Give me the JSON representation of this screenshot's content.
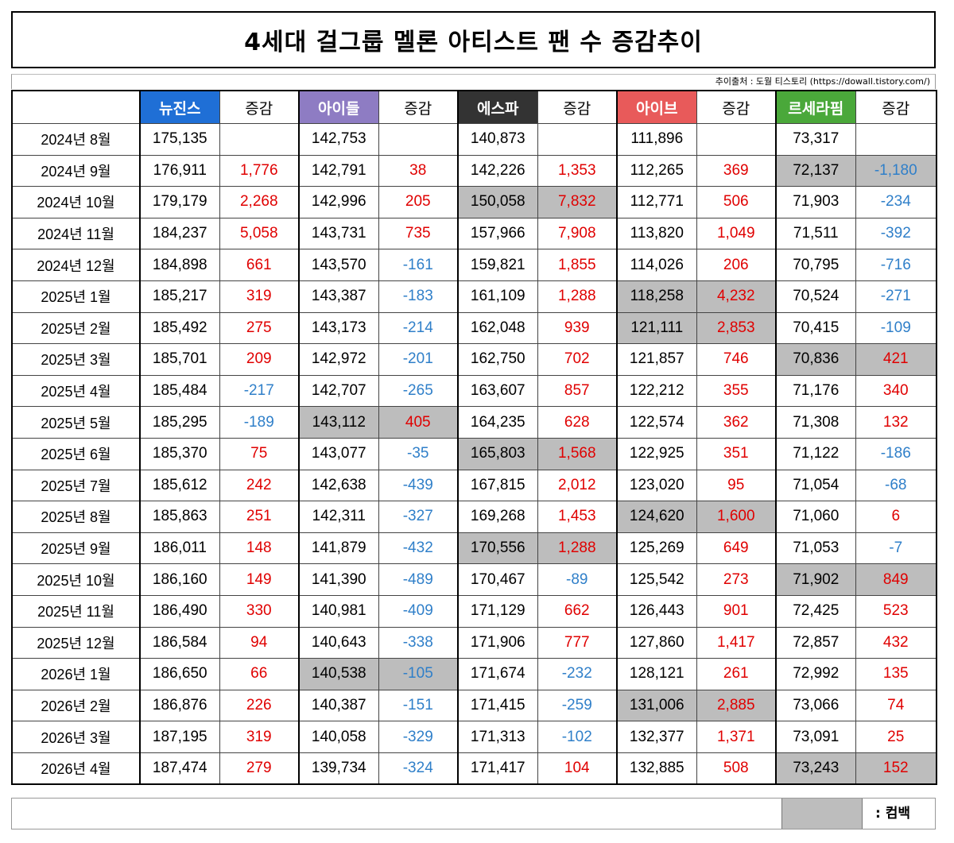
{
  "title": "4세대 걸그룹 멜론 아티스트 팬 수 증감추이",
  "source": "추이출처 : 도월 티스토리 (https://dowall.tistory.com/)",
  "change_label": "증감",
  "groups": [
    {
      "name": "뉴진스",
      "color": "#1f6fd6"
    },
    {
      "name": "아이들",
      "color": "#8e7cc3"
    },
    {
      "name": "에스파",
      "color": "#333333"
    },
    {
      "name": "아이브",
      "color": "#e85a5a"
    },
    {
      "name": "르세라핌",
      "color": "#4aa83a"
    }
  ],
  "legend": {
    "label": ": 컴백"
  },
  "rows": [
    {
      "month": "2024년 8월",
      "cells": [
        {
          "v": "175,135",
          "d": ""
        },
        {
          "v": "142,753",
          "d": ""
        },
        {
          "v": "140,873",
          "d": ""
        },
        {
          "v": "111,896",
          "d": ""
        },
        {
          "v": "73,317",
          "d": ""
        }
      ]
    },
    {
      "month": "2024년 9월",
      "cells": [
        {
          "v": "176,911",
          "d": "1,776"
        },
        {
          "v": "142,791",
          "d": "38"
        },
        {
          "v": "142,226",
          "d": "1,353"
        },
        {
          "v": "112,265",
          "d": "369"
        },
        {
          "v": "72,137",
          "d": "-1,180",
          "cb": true
        }
      ]
    },
    {
      "month": "2024년 10월",
      "cells": [
        {
          "v": "179,179",
          "d": "2,268"
        },
        {
          "v": "142,996",
          "d": "205"
        },
        {
          "v": "150,058",
          "d": "7,832",
          "cb": true
        },
        {
          "v": "112,771",
          "d": "506"
        },
        {
          "v": "71,903",
          "d": "-234"
        }
      ]
    },
    {
      "month": "2024년 11월",
      "cells": [
        {
          "v": "184,237",
          "d": "5,058"
        },
        {
          "v": "143,731",
          "d": "735"
        },
        {
          "v": "157,966",
          "d": "7,908"
        },
        {
          "v": "113,820",
          "d": "1,049"
        },
        {
          "v": "71,511",
          "d": "-392"
        }
      ]
    },
    {
      "month": "2024년 12월",
      "cells": [
        {
          "v": "184,898",
          "d": "661"
        },
        {
          "v": "143,570",
          "d": "-161"
        },
        {
          "v": "159,821",
          "d": "1,855"
        },
        {
          "v": "114,026",
          "d": "206"
        },
        {
          "v": "70,795",
          "d": "-716"
        }
      ]
    },
    {
      "month": "2025년 1월",
      "cells": [
        {
          "v": "185,217",
          "d": "319"
        },
        {
          "v": "143,387",
          "d": "-183"
        },
        {
          "v": "161,109",
          "d": "1,288"
        },
        {
          "v": "118,258",
          "d": "4,232",
          "cb": true
        },
        {
          "v": "70,524",
          "d": "-271"
        }
      ]
    },
    {
      "month": "2025년 2월",
      "cells": [
        {
          "v": "185,492",
          "d": "275"
        },
        {
          "v": "143,173",
          "d": "-214"
        },
        {
          "v": "162,048",
          "d": "939"
        },
        {
          "v": "121,111",
          "d": "2,853",
          "cb": true
        },
        {
          "v": "70,415",
          "d": "-109"
        }
      ]
    },
    {
      "month": "2025년 3월",
      "cells": [
        {
          "v": "185,701",
          "d": "209"
        },
        {
          "v": "142,972",
          "d": "-201"
        },
        {
          "v": "162,750",
          "d": "702"
        },
        {
          "v": "121,857",
          "d": "746"
        },
        {
          "v": "70,836",
          "d": "421",
          "cb": true
        }
      ]
    },
    {
      "month": "2025년 4월",
      "cells": [
        {
          "v": "185,484",
          "d": "-217"
        },
        {
          "v": "142,707",
          "d": "-265"
        },
        {
          "v": "163,607",
          "d": "857"
        },
        {
          "v": "122,212",
          "d": "355"
        },
        {
          "v": "71,176",
          "d": "340"
        }
      ]
    },
    {
      "month": "2025년 5월",
      "cells": [
        {
          "v": "185,295",
          "d": "-189"
        },
        {
          "v": "143,112",
          "d": "405",
          "cb": true
        },
        {
          "v": "164,235",
          "d": "628"
        },
        {
          "v": "122,574",
          "d": "362"
        },
        {
          "v": "71,308",
          "d": "132"
        }
      ]
    },
    {
      "month": "2025년 6월",
      "cells": [
        {
          "v": "185,370",
          "d": "75"
        },
        {
          "v": "143,077",
          "d": "-35"
        },
        {
          "v": "165,803",
          "d": "1,568",
          "cb": true
        },
        {
          "v": "122,925",
          "d": "351"
        },
        {
          "v": "71,122",
          "d": "-186"
        }
      ]
    },
    {
      "month": "2025년 7월",
      "cells": [
        {
          "v": "185,612",
          "d": "242"
        },
        {
          "v": "142,638",
          "d": "-439"
        },
        {
          "v": "167,815",
          "d": "2,012"
        },
        {
          "v": "123,020",
          "d": "95"
        },
        {
          "v": "71,054",
          "d": "-68"
        }
      ]
    },
    {
      "month": "2025년 8월",
      "cells": [
        {
          "v": "185,863",
          "d": "251"
        },
        {
          "v": "142,311",
          "d": "-327"
        },
        {
          "v": "169,268",
          "d": "1,453"
        },
        {
          "v": "124,620",
          "d": "1,600",
          "cb": true
        },
        {
          "v": "71,060",
          "d": "6"
        }
      ]
    },
    {
      "month": "2025년 9월",
      "cells": [
        {
          "v": "186,011",
          "d": "148"
        },
        {
          "v": "141,879",
          "d": "-432"
        },
        {
          "v": "170,556",
          "d": "1,288",
          "cb": true
        },
        {
          "v": "125,269",
          "d": "649"
        },
        {
          "v": "71,053",
          "d": "-7"
        }
      ]
    },
    {
      "month": "2025년 10월",
      "cells": [
        {
          "v": "186,160",
          "d": "149"
        },
        {
          "v": "141,390",
          "d": "-489"
        },
        {
          "v": "170,467",
          "d": "-89"
        },
        {
          "v": "125,542",
          "d": "273"
        },
        {
          "v": "71,902",
          "d": "849",
          "cb": true
        }
      ]
    },
    {
      "month": "2025년 11월",
      "cells": [
        {
          "v": "186,490",
          "d": "330"
        },
        {
          "v": "140,981",
          "d": "-409"
        },
        {
          "v": "171,129",
          "d": "662"
        },
        {
          "v": "126,443",
          "d": "901"
        },
        {
          "v": "72,425",
          "d": "523"
        }
      ]
    },
    {
      "month": "2025년 12월",
      "cells": [
        {
          "v": "186,584",
          "d": "94"
        },
        {
          "v": "140,643",
          "d": "-338"
        },
        {
          "v": "171,906",
          "d": "777"
        },
        {
          "v": "127,860",
          "d": "1,417"
        },
        {
          "v": "72,857",
          "d": "432"
        }
      ]
    },
    {
      "month": "2026년 1월",
      "cells": [
        {
          "v": "186,650",
          "d": "66"
        },
        {
          "v": "140,538",
          "d": "-105",
          "cb": true
        },
        {
          "v": "171,674",
          "d": "-232"
        },
        {
          "v": "128,121",
          "d": "261"
        },
        {
          "v": "72,992",
          "d": "135"
        }
      ]
    },
    {
      "month": "2026년 2월",
      "cells": [
        {
          "v": "186,876",
          "d": "226"
        },
        {
          "v": "140,387",
          "d": "-151"
        },
        {
          "v": "171,415",
          "d": "-259"
        },
        {
          "v": "131,006",
          "d": "2,885",
          "cb": true
        },
        {
          "v": "73,066",
          "d": "74"
        }
      ]
    },
    {
      "month": "2026년 3월",
      "cells": [
        {
          "v": "187,195",
          "d": "319"
        },
        {
          "v": "140,058",
          "d": "-329"
        },
        {
          "v": "171,313",
          "d": "-102"
        },
        {
          "v": "132,377",
          "d": "1,371"
        },
        {
          "v": "73,091",
          "d": "25"
        }
      ]
    },
    {
      "month": "2026년 4월",
      "cells": [
        {
          "v": "187,474",
          "d": "279"
        },
        {
          "v": "139,734",
          "d": "-324"
        },
        {
          "v": "171,417",
          "d": "104"
        },
        {
          "v": "132,885",
          "d": "508"
        },
        {
          "v": "73,243",
          "d": "152",
          "cb": true
        }
      ]
    }
  ]
}
